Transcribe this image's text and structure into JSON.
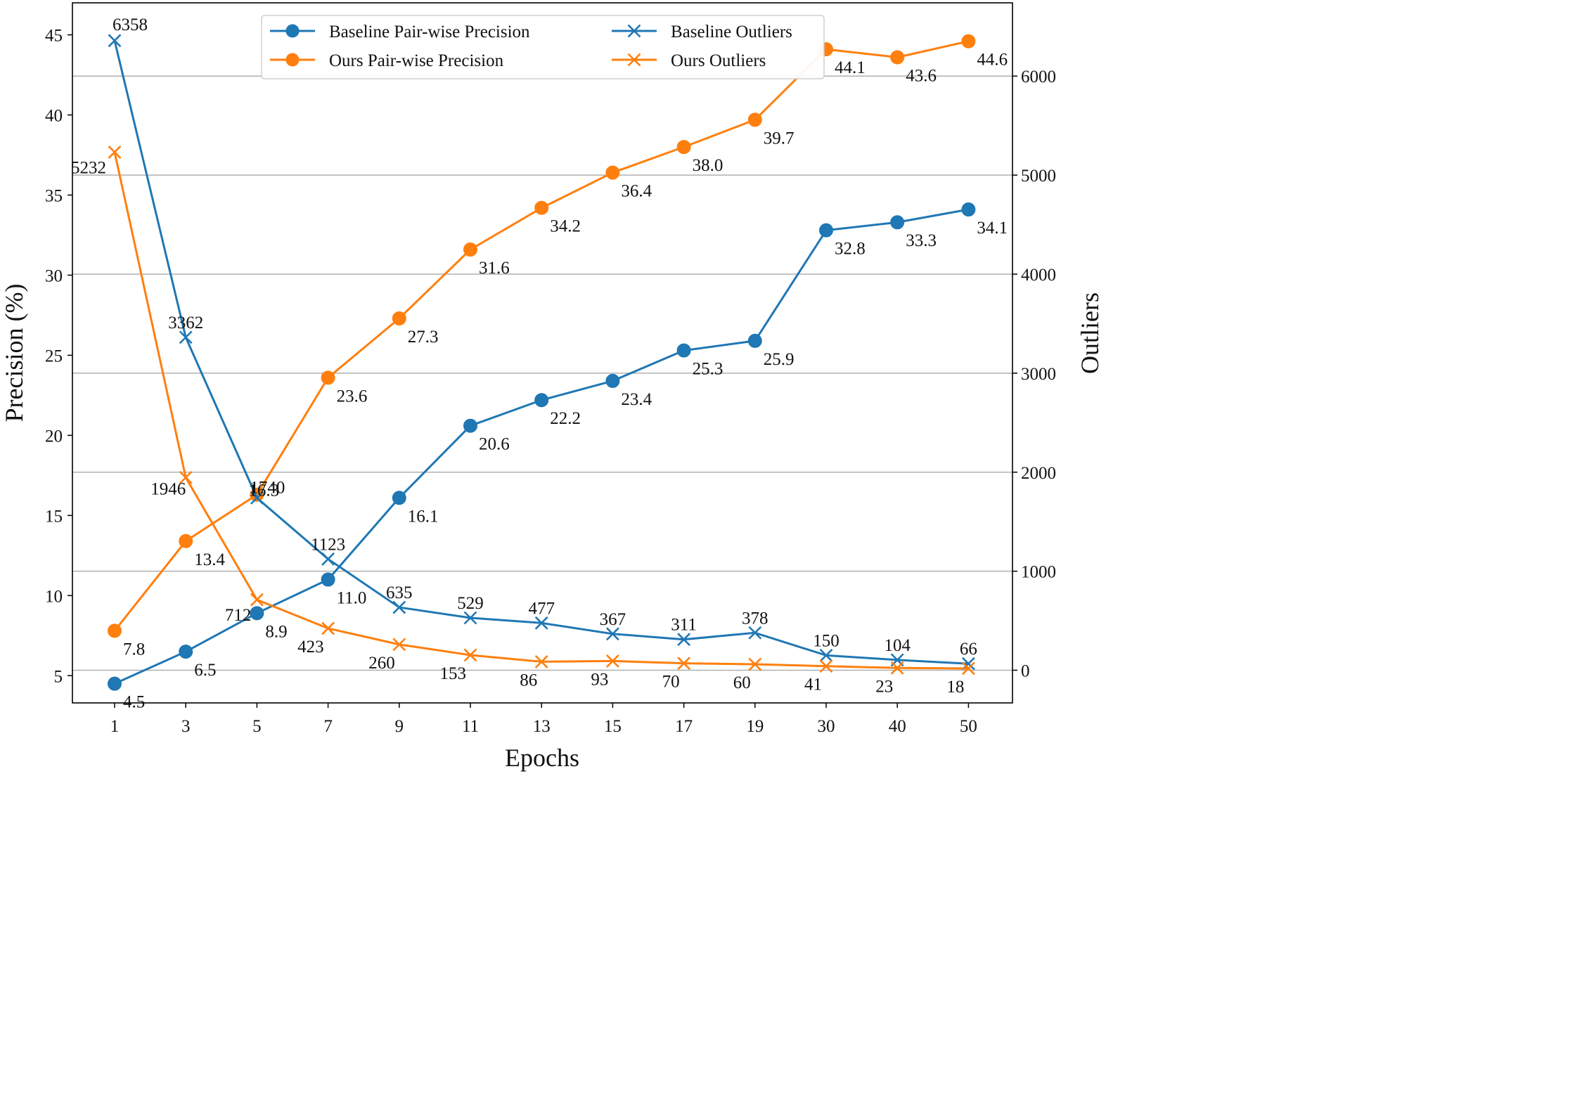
{
  "chart_data": {
    "type": "line",
    "xlabel": "Epochs",
    "ylabel": "Precision (%)",
    "y2label": "Outliers",
    "categories": [
      "1",
      "3",
      "5",
      "7",
      "9",
      "11",
      "13",
      "15",
      "17",
      "19",
      "30",
      "40",
      "50"
    ],
    "ylim": [
      3.3,
      47.0
    ],
    "y2lim": [
      -330,
      6740
    ],
    "yticks": [
      5,
      10,
      15,
      20,
      25,
      30,
      35,
      40,
      45
    ],
    "y2ticks": [
      0,
      1000,
      2000,
      3000,
      4000,
      5000,
      6000
    ],
    "grid": "horizontal lines at right-axis ticks",
    "legend_position": "top-center",
    "series": [
      {
        "name": "Baseline Pair-wise Precision",
        "axis": "left",
        "marker": "circle",
        "color": "#1f77b4",
        "values": [
          4.5,
          6.5,
          8.9,
          11.0,
          16.1,
          20.6,
          22.2,
          23.4,
          25.3,
          25.9,
          32.8,
          33.3,
          34.1
        ],
        "labels": [
          "4.5",
          "6.5",
          "8.9",
          "11.0",
          "16.1",
          "20.6",
          "22.2",
          "23.4",
          "25.3",
          "25.9",
          "32.8",
          "33.3",
          "34.1"
        ]
      },
      {
        "name": "Ours Pair-wise Precision",
        "axis": "left",
        "marker": "circle",
        "color": "#ff7f0e",
        "values": [
          7.8,
          13.4,
          16.3,
          23.6,
          27.3,
          31.6,
          34.2,
          36.4,
          38.0,
          39.7,
          44.1,
          43.6,
          44.6
        ],
        "labels": [
          "7.8",
          "13.4",
          "16.3",
          "23.6",
          "27.3",
          "31.6",
          "34.2",
          "36.4",
          "38.0",
          "39.7",
          "44.1",
          "43.6",
          "44.6"
        ]
      },
      {
        "name": "Baseline Outliers",
        "axis": "right",
        "marker": "x",
        "color": "#1f77b4",
        "values": [
          6358,
          3362,
          1740,
          1123,
          635,
          529,
          477,
          367,
          311,
          378,
          150,
          104,
          66
        ],
        "labels": [
          "6358",
          "3362",
          "1740",
          "1123",
          "635",
          "529",
          "477",
          "367",
          "311",
          "378",
          "150",
          "104",
          "66"
        ]
      },
      {
        "name": "Ours Outliers",
        "axis": "right",
        "marker": "x",
        "color": "#ff7f0e",
        "values": [
          5232,
          1946,
          712,
          423,
          260,
          153,
          86,
          93,
          70,
          60,
          41,
          23,
          18
        ],
        "labels": [
          "5232",
          "1946",
          "712",
          "423",
          "260",
          "153",
          "86",
          "93",
          "70",
          "60",
          "41",
          "23",
          "18"
        ]
      }
    ]
  }
}
